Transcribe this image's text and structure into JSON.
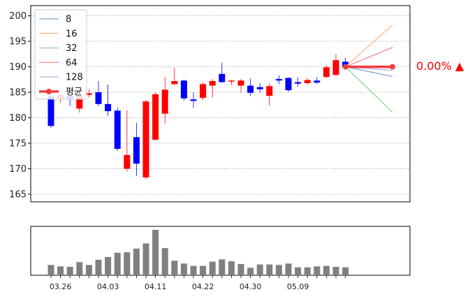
{
  "chart_data": [
    {
      "type": "candlestick",
      "ylim": [
        163.5,
        202
      ],
      "yticks": [
        165,
        170,
        175,
        180,
        185,
        190,
        195,
        200
      ],
      "grid": true,
      "legend_placement": "top-left",
      "candles": [
        {
          "o": 184.2,
          "h": 185.2,
          "l": 178.0,
          "c": 178.4
        },
        {
          "o": 183.8,
          "h": 184.8,
          "l": 183.0,
          "c": 184.5
        },
        {
          "o": 184.3,
          "h": 185.0,
          "l": 182.3,
          "c": 183.8
        },
        {
          "o": 181.8,
          "h": 184.6,
          "l": 181.0,
          "c": 184.4
        },
        {
          "o": 184.5,
          "h": 185.6,
          "l": 184.0,
          "c": 184.8
        },
        {
          "o": 185.0,
          "h": 187.2,
          "l": 182.3,
          "c": 182.7
        },
        {
          "o": 182.7,
          "h": 186.5,
          "l": 180.4,
          "c": 181.3
        },
        {
          "o": 181.4,
          "h": 182.0,
          "l": 173.5,
          "c": 173.9
        },
        {
          "o": 170.0,
          "h": 181.5,
          "l": 169.5,
          "c": 172.7
        },
        {
          "o": 176.2,
          "h": 179.0,
          "l": 168.6,
          "c": 171.0
        },
        {
          "o": 168.3,
          "h": 183.5,
          "l": 168.0,
          "c": 183.2
        },
        {
          "o": 175.7,
          "h": 185.0,
          "l": 175.5,
          "c": 184.6
        },
        {
          "o": 180.8,
          "h": 188.0,
          "l": 178.9,
          "c": 185.5
        },
        {
          "o": 186.6,
          "h": 189.8,
          "l": 186.3,
          "c": 187.2
        },
        {
          "o": 187.3,
          "h": 187.5,
          "l": 183.4,
          "c": 183.8
        },
        {
          "o": 183.6,
          "h": 185.0,
          "l": 182.0,
          "c": 183.3
        },
        {
          "o": 183.9,
          "h": 187.0,
          "l": 183.5,
          "c": 186.6
        },
        {
          "o": 186.3,
          "h": 187.6,
          "l": 184.0,
          "c": 187.2
        },
        {
          "o": 188.6,
          "h": 190.8,
          "l": 186.8,
          "c": 187.0
        },
        {
          "o": 187.1,
          "h": 187.4,
          "l": 186.4,
          "c": 187.3
        },
        {
          "o": 186.3,
          "h": 187.6,
          "l": 184.9,
          "c": 187.3
        },
        {
          "o": 186.3,
          "h": 187.7,
          "l": 184.2,
          "c": 184.9
        },
        {
          "o": 186.0,
          "h": 186.8,
          "l": 184.9,
          "c": 185.6
        },
        {
          "o": 184.3,
          "h": 186.7,
          "l": 182.4,
          "c": 186.2
        },
        {
          "o": 187.6,
          "h": 188.3,
          "l": 186.6,
          "c": 187.3
        },
        {
          "o": 187.8,
          "h": 188.0,
          "l": 185.1,
          "c": 185.4
        },
        {
          "o": 187.0,
          "h": 187.9,
          "l": 186.1,
          "c": 186.7
        },
        {
          "o": 186.8,
          "h": 187.8,
          "l": 186.5,
          "c": 187.4
        },
        {
          "o": 187.3,
          "h": 188.0,
          "l": 186.6,
          "c": 186.9
        },
        {
          "o": 188.0,
          "h": 190.3,
          "l": 187.8,
          "c": 189.9
        },
        {
          "o": 188.4,
          "h": 192.5,
          "l": 188.2,
          "c": 191.3
        },
        {
          "o": 191.0,
          "h": 191.8,
          "l": 189.4,
          "c": 190.0
        }
      ],
      "projection": {
        "start": 190.0,
        "lines": [
          {
            "name": "8",
            "color": "#7fa6d6",
            "end": 188.1
          },
          {
            "name": "16",
            "color": "#f5b987",
            "end": 198.2
          },
          {
            "name": "32",
            "color": "#8fd18f",
            "end": 181.1
          },
          {
            "name": "64",
            "color": "#ee8c8c",
            "end": 193.8
          },
          {
            "name": "128",
            "color": "#c4aee8",
            "end": 189.3
          }
        ],
        "avg": {
          "name": "평균",
          "color": "#f03c3c",
          "end": 190.0
        }
      },
      "annotation": "0.00% ▲",
      "up_color": "#ff0000",
      "down_color": "#0000ff"
    },
    {
      "type": "bar",
      "values": [
        2.2,
        1.9,
        1.8,
        2.8,
        2.2,
        3.3,
        3.9,
        4.8,
        4.9,
        5.7,
        6.8,
        9.7,
        5.8,
        3.1,
        2.5,
        2.0,
        2.0,
        2.9,
        3.4,
        3.0,
        2.4,
        1.6,
        2.3,
        2.3,
        2.2,
        2.5,
        1.7,
        1.7,
        1.9,
        2.0,
        1.8,
        1.7
      ],
      "color": "#808080",
      "xticks": [
        {
          "index": 1,
          "label": "03.26"
        },
        {
          "index": 6,
          "label": "04.03"
        },
        {
          "index": 11,
          "label": "04.11"
        },
        {
          "index": 16,
          "label": "04.22"
        },
        {
          "index": 21,
          "label": "04.30"
        },
        {
          "index": 26,
          "label": "05.09"
        }
      ]
    }
  ]
}
